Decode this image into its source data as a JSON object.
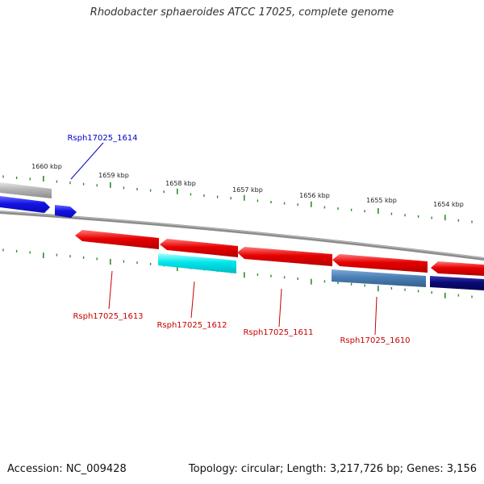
{
  "title": "Rhodobacter sphaeroides ATCC 17025, complete genome",
  "footer": {
    "accession": "Accession: NC_009428",
    "summary": "Topology: circular; Length: 3,217,726 bp; Genes: 3,156"
  },
  "scale_labels": [
    "1660 kbp",
    "1659 kbp",
    "1658 kbp",
    "1657 kbp",
    "1656 kbp",
    "1655 kbp",
    "1654 kbp"
  ],
  "gene_labels": [
    {
      "name": "gene-label-rsph17025-1614",
      "text": "Rsph17025_1614",
      "color": "#0000c8"
    },
    {
      "name": "gene-label-rsph17025-1613",
      "text": "Rsph17025_1613",
      "color": "#c80000"
    },
    {
      "name": "gene-label-rsph17025-1612",
      "text": "Rsph17025_1612",
      "color": "#c80000"
    },
    {
      "name": "gene-label-rsph17025-1611",
      "text": "Rsph17025_1611",
      "color": "#c80000"
    },
    {
      "name": "gene-label-rsph17025-1610",
      "text": "Rsph17025_1610",
      "color": "#c80000"
    }
  ],
  "colors": {
    "tick": "#2e8b2e",
    "backbone": "#8c8c8c",
    "red_gene": "#e60000",
    "blue_gene": "#1414e6",
    "cyan_gene": "#00e6ec",
    "steel_gene": "#4a7fb5",
    "navy_gene": "#0a0a78",
    "gray_gene": "#b4b4b4"
  }
}
